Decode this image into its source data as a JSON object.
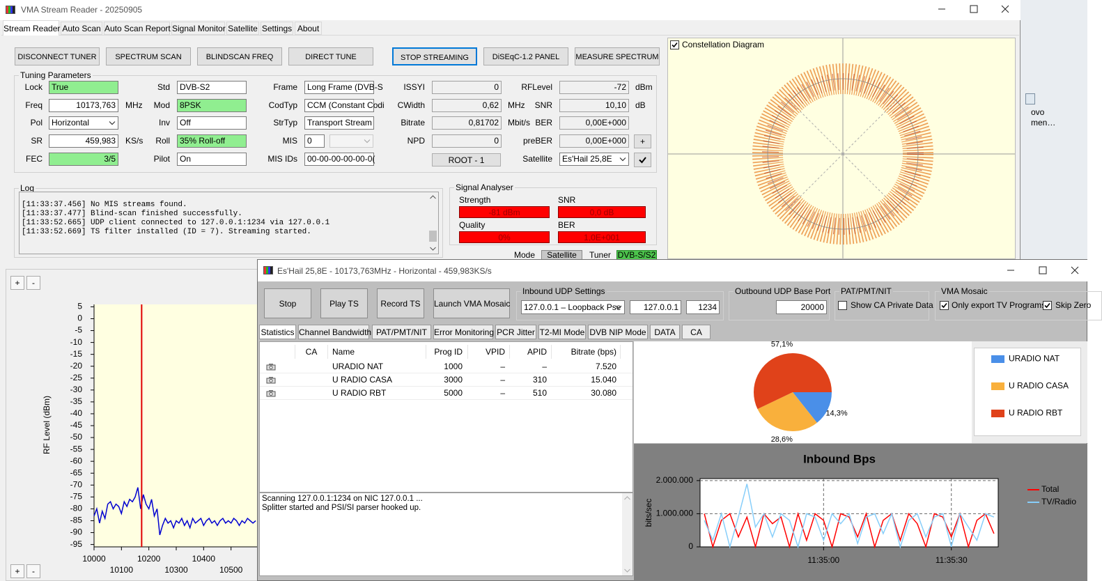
{
  "main_window": {
    "title": "VMA Stream Reader - 20250905",
    "tabs": [
      "Stream Reader",
      "Auto Scan",
      "Auto Scan Report",
      "Signal Monitor",
      "Satellite",
      "Settings",
      "About"
    ],
    "buttons": [
      "DISCONNECT TUNER",
      "SPECTRUM SCAN",
      "BLINDSCAN FREQ",
      "DIRECT TUNE",
      "STOP STREAMING",
      "DiSEqC-1.2 PANEL",
      "MEASURE SPECTRUM"
    ],
    "tuning": {
      "title": "Tuning Parameters",
      "fields": [
        {
          "label": "Lock",
          "value": "True"
        },
        {
          "label": "Std",
          "value": "DVB-S2"
        },
        {
          "label": "Frame",
          "value": "Long Frame (DVB-S"
        },
        {
          "label": "ISSYI",
          "value": "0"
        },
        {
          "label": "RFLevel",
          "value": "-72",
          "unit": "dBm"
        },
        {
          "label": "Freq",
          "value": "10173,763",
          "unit": "MHz"
        },
        {
          "label": "Mod",
          "value": "8PSK"
        },
        {
          "label": "CodTyp",
          "value": "CCM (Constant Codi"
        },
        {
          "label": "CWidth",
          "value": "0,62",
          "unit": "MHz"
        },
        {
          "label": "SNR",
          "value": "10,10",
          "unit": "dB"
        },
        {
          "label": "Pol",
          "value": "Horizontal"
        },
        {
          "label": "Inv",
          "value": "Off"
        },
        {
          "label": "StrTyp",
          "value": "Transport Stream"
        },
        {
          "label": "Bitrate",
          "value": "0,81702",
          "unit": "Mbit/s"
        },
        {
          "label": "BER",
          "value": "0,00E+000"
        },
        {
          "label": "SR",
          "value": "459,983",
          "unit": "KS/s"
        },
        {
          "label": "Roll",
          "value": "35% Roll-off"
        },
        {
          "label": "MIS",
          "value": "0"
        },
        {
          "label": "NPD",
          "value": "0"
        },
        {
          "label": "preBER",
          "value": "0,00E+000"
        },
        {
          "label": "FEC",
          "value": "3/5"
        },
        {
          "label": "Pilot",
          "value": "On"
        },
        {
          "label": "MIS IDs",
          "value": "00-00-00-00-00-0("
        },
        {
          "label": "Satellite",
          "value": "Es'Hail 25,8E"
        }
      ],
      "root_button": "ROOT - 1",
      "plus_button": "+"
    },
    "log": {
      "title": "Log",
      "lines": [
        "[11:33:37.456] No MIS streams found.",
        "[11:33:37.477] Blind-scan finished successfully.",
        "[11:33:52.665] UDP client connected to 127.0.0.1:1234 via 127.0.0.1",
        "[11:33:52.669] TS filter installed (ID = 7). Streaming started."
      ]
    },
    "signal_analyser": {
      "title": "Signal Analyser",
      "meters": [
        {
          "label": "Strength",
          "value": "-81 dBm"
        },
        {
          "label": "SNR",
          "value": "0,0 dB"
        },
        {
          "label": "Quality",
          "value": "0%"
        },
        {
          "label": "BER",
          "value": "1,0E+001"
        }
      ],
      "mode": {
        "label": "Mode",
        "value": "Satellite"
      },
      "tuner": {
        "label": "Tuner",
        "value": "DVB-S/S2"
      }
    },
    "constellation": {
      "title": "Constellation Diagram"
    },
    "spectrum_panel": {
      "zoom_in": "+",
      "zoom_out": "-"
    }
  },
  "stream_window": {
    "title": "Es'Hail 25,8E - 10173,763MHz - Horizontal - 459,983KS/s",
    "buttons": [
      "Stop",
      "Play TS",
      "Record TS",
      "Launch VMA Mosaic"
    ],
    "inbound": {
      "title": "Inbound UDP Settings",
      "nic": "127.0.0.1  –  Loopback Pse",
      "address": "127.0.0.1",
      "port": "1234"
    },
    "outbound": {
      "title": "Outbound UDP Base Port",
      "port": "20000"
    },
    "pat": {
      "title": "PAT/PMT/NIT",
      "option": "Show CA Private Data"
    },
    "mosaic": {
      "title": "VMA Mosaic",
      "options": [
        "Only export TV Programs",
        "Skip Zero"
      ]
    },
    "tabs": [
      "Statistics",
      "Channel Bandwidth",
      "PAT/PMT/NIT",
      "Error Monitoring",
      "PCR Jitter",
      "T2-MI Mode",
      "DVB NIP Mode",
      "DATA",
      "CA"
    ],
    "table": {
      "headers": [
        "CA",
        "Name",
        "Prog ID",
        "VPID",
        "APID",
        "Bitrate (bps)"
      ],
      "rows": [
        [
          "URADIO NAT",
          "1000",
          "–",
          "–",
          "7.520"
        ],
        [
          "U RADIO CASA",
          "3000",
          "–",
          "310",
          "15.040"
        ],
        [
          "U RADIO RBT",
          "5000",
          "–",
          "510",
          "30.080"
        ]
      ]
    },
    "log_lines": [
      "Scanning 127.0.0.1:1234 on NIC 127.0.0.1 ...",
      "Splitter started and PSI/SI parser hooked up."
    ]
  },
  "desktop": {
    "icon_label": [
      "ovo",
      "men…"
    ]
  },
  "chart_data": [
    {
      "type": "line",
      "y_label": "RF Level (dBm)",
      "x": [
        10000,
        10010,
        10020,
        10030,
        10040,
        10050,
        10060,
        10070,
        10080,
        10090,
        10100,
        10110,
        10120,
        10130,
        10140,
        10150,
        10160,
        10170,
        10180,
        10190,
        10200,
        10210,
        10220,
        10230,
        10240,
        10250,
        10260,
        10270,
        10280,
        10290,
        10300,
        10310,
        10320,
        10330,
        10340,
        10350,
        10360,
        10370,
        10380,
        10390,
        10400,
        10410,
        10420,
        10430,
        10440,
        10450,
        10460,
        10470,
        10480,
        10490,
        10500,
        10510,
        10520,
        10530,
        10540,
        10550,
        10560,
        10570,
        10580,
        10590
      ],
      "series": [
        {
          "color": "#0000d0",
          "values": [
            -83,
            -80,
            -86,
            -81,
            -84,
            -78,
            -77,
            -80,
            -78,
            -79,
            -82,
            -77,
            -79,
            -76,
            -77,
            -75,
            -71,
            -80,
            -74,
            -78,
            -80,
            -76,
            -83,
            -80,
            -91,
            -87,
            -84,
            -86,
            -85,
            -88,
            -85,
            -86,
            -84,
            -87,
            -85,
            -88,
            -84,
            -86,
            -85,
            -84,
            -87,
            -85,
            -84,
            -86,
            -85,
            -87,
            -85,
            -84,
            -86,
            -85,
            -86,
            -84,
            -85,
            -87,
            -85,
            -86,
            -84,
            -85,
            -86,
            -85
          ]
        }
      ],
      "xlim": [
        10000,
        10600
      ],
      "xticks": [
        10000,
        10100,
        10200,
        10300,
        10400,
        10500
      ],
      "ylim": [
        -96,
        6
      ],
      "yticks": [
        5,
        0,
        -5,
        -10,
        -15,
        -20,
        -25,
        -30,
        -35,
        -40,
        -45,
        -50,
        -55,
        -60,
        -65,
        -70,
        -75,
        -80,
        -85,
        -90,
        -95
      ],
      "marker": {
        "value": 10173.763,
        "color": "#e00000"
      },
      "grid": false
    },
    {
      "type": "pie",
      "categories": [
        "URADIO NAT",
        "U RADIO CASA",
        "U RADIO RBT"
      ],
      "values": [
        14.3,
        28.6,
        57.1
      ],
      "value_labels": [
        "14,3%",
        "28,6%",
        "57,1%"
      ],
      "colors": [
        "#4a8fe8",
        "#f9b03c",
        "#e0421a"
      ],
      "legend": "right"
    },
    {
      "type": "line",
      "title": "Inbound Bps",
      "y_label": "bits/sec",
      "x": [
        41672,
        41674,
        41676,
        41678,
        41680,
        41682,
        41684,
        41686,
        41688,
        41690,
        41692,
        41694,
        41696,
        41698,
        41700,
        41702,
        41704,
        41706,
        41708,
        41710,
        41712,
        41714,
        41716,
        41718,
        41720,
        41722,
        41724,
        41726,
        41728,
        41730,
        41732,
        41734,
        41736,
        41738,
        41740
      ],
      "xlim": [
        41671,
        41741
      ],
      "xticks": [
        {
          "value": 41700,
          "label": "11:35:00"
        },
        {
          "value": 41730,
          "label": "11:35:30"
        }
      ],
      "ylim": [
        0,
        2060000
      ],
      "yticks": [
        0,
        {
          "value": 1000000,
          "label": "1.000.000"
        },
        {
          "value": 2000000,
          "label": "2.000.000"
        }
      ],
      "grid": true,
      "legend": "right",
      "series": [
        {
          "name": "Total",
          "color": "#ff0000",
          "values": [
            1000000,
            0,
            800000,
            1000000,
            300000,
            900000,
            0,
            1000000,
            700000,
            900000,
            0,
            1000000,
            200000,
            1000000,
            800000,
            0,
            1000000,
            900000,
            300000,
            1000000,
            0,
            800000,
            1000000,
            200000,
            1000000,
            700000,
            0,
            1000000,
            900000,
            300000,
            1000000,
            0,
            800000,
            1000000,
            400000
          ]
        },
        {
          "name": "TV/Radio",
          "color": "#87cefa",
          "values": [
            800000,
            200000,
            1000000,
            0,
            900000,
            1900000,
            600000,
            1000000,
            300000,
            1000000,
            800000,
            0,
            1000000,
            900000,
            200000,
            1000000,
            700000,
            1000000,
            100000,
            900000,
            1000000,
            400000,
            1000000,
            0,
            800000,
            1000000,
            300000,
            900000,
            1000000,
            0,
            1000000,
            600000,
            200000,
            1000000,
            900000
          ]
        }
      ]
    }
  ]
}
